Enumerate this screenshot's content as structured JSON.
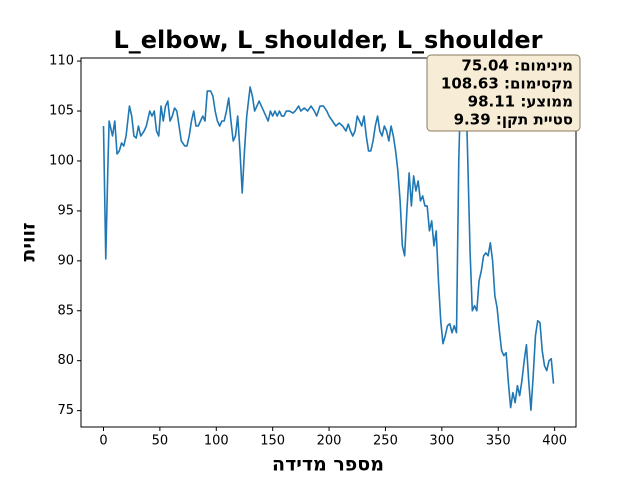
{
  "chart_data": {
    "type": "line",
    "title": "L_elbow, L_shoulder, L_shoulder",
    "x_label": "מספר מדידה",
    "y_label": "זווית",
    "annotations": [
      "מינימום: 75.04",
      "מקסימום: 108.63",
      "ממוצע: 98.11",
      "סטיית תקן: 9.39"
    ],
    "xlim": [
      -19.95,
      418.95
    ],
    "ylim": [
      73.36,
      110.31
    ],
    "xticks": [
      0,
      50,
      100,
      150,
      200,
      250,
      300,
      350,
      400
    ],
    "yticks": [
      75,
      80,
      85,
      90,
      95,
      100,
      105,
      110
    ],
    "x": [
      0,
      2,
      4,
      5,
      7,
      8,
      10,
      12,
      14,
      16,
      18,
      20,
      23,
      25,
      27,
      29,
      31,
      33,
      36,
      38,
      41,
      43,
      45,
      47,
      49,
      51,
      53,
      55,
      57,
      59,
      61,
      63,
      65,
      67,
      69,
      72,
      74,
      76,
      78,
      80,
      82,
      84,
      86,
      88,
      90,
      92,
      95,
      97,
      99,
      101,
      103,
      105,
      107,
      109,
      111,
      113,
      115,
      117,
      119,
      121,
      123,
      125,
      127,
      130,
      132,
      134,
      136,
      138,
      140,
      142,
      144,
      146,
      148,
      150,
      152,
      154,
      156,
      158,
      160,
      162,
      165,
      168,
      170,
      173,
      175,
      178,
      181,
      184,
      187,
      189,
      192,
      195,
      198,
      200,
      203,
      206,
      209,
      212,
      215,
      217,
      219,
      221,
      223,
      225,
      227,
      229,
      231,
      233,
      235,
      237,
      239,
      241,
      243,
      245,
      247,
      249,
      251,
      253,
      255,
      257,
      259,
      261,
      263,
      265,
      267,
      269,
      271,
      273,
      275,
      277,
      279,
      281,
      283,
      285,
      287,
      289,
      291,
      293,
      295,
      297,
      299,
      301,
      303,
      305,
      307,
      309,
      311,
      313,
      315,
      317,
      319,
      321,
      323,
      325,
      327,
      329,
      331,
      333,
      335,
      337,
      339,
      341,
      343,
      345,
      347,
      349,
      351,
      353,
      355,
      357,
      359,
      361,
      363,
      365,
      367,
      369,
      371,
      373,
      375,
      377,
      379,
      381,
      383,
      385,
      387,
      389,
      391,
      393,
      395,
      397,
      399
    ],
    "series": [
      {
        "color": "#1f77b4",
        "values": [
          103.5,
          90.2,
          100,
          104,
          103,
          102.5,
          104,
          100.7,
          101,
          101.8,
          101.5,
          102.5,
          105.5,
          104.5,
          102.5,
          102.3,
          103.5,
          102.5,
          103,
          103.5,
          105,
          104.5,
          105,
          103,
          102.5,
          105.5,
          104,
          105.5,
          106,
          104,
          104.5,
          105.3,
          105,
          103.5,
          102,
          101.5,
          101.5,
          102.5,
          104,
          105,
          103.5,
          103.5,
          104,
          104.5,
          104,
          107,
          107,
          106.5,
          105,
          104,
          103.5,
          104,
          104,
          105,
          106.3,
          104,
          102,
          102.5,
          104.5,
          101,
          96.8,
          101,
          104.5,
          107.4,
          106.5,
          105,
          105.5,
          106,
          105.5,
          105,
          104.5,
          104,
          105,
          104.5,
          105,
          104.5,
          105,
          104.5,
          104.5,
          105,
          105,
          104.8,
          105,
          105.5,
          105,
          105.3,
          105,
          105.5,
          105,
          104.5,
          105.5,
          105.5,
          105,
          104.5,
          104,
          103.5,
          103.8,
          103.5,
          103,
          103.7,
          103,
          102.5,
          103,
          104.5,
          104,
          103.5,
          104.5,
          102.5,
          101,
          101,
          102,
          103.5,
          104.5,
          103,
          102.5,
          103.5,
          103,
          102,
          103.5,
          102.5,
          101,
          99,
          96,
          91.5,
          90.5,
          95,
          98.8,
          95.5,
          98.5,
          97,
          98,
          96,
          96.5,
          95.5,
          95.5,
          93,
          94,
          91.5,
          93,
          88,
          84,
          81.7,
          82.5,
          83.5,
          83.7,
          82.8,
          83.5,
          82.8,
          100,
          108.5,
          106,
          108.63,
          100,
          91,
          85,
          85.5,
          85,
          88,
          89,
          90.5,
          90.8,
          90.5,
          91.8,
          90,
          86.5,
          85.3,
          83,
          81,
          80.5,
          80.8,
          77.8,
          75.3,
          76.8,
          75.8,
          77.5,
          76.5,
          78,
          80,
          81.6,
          78,
          75.04,
          78.5,
          82.5,
          84,
          83.8,
          81,
          79.5,
          79,
          80,
          80.2,
          77.7
        ]
      }
    ]
  }
}
